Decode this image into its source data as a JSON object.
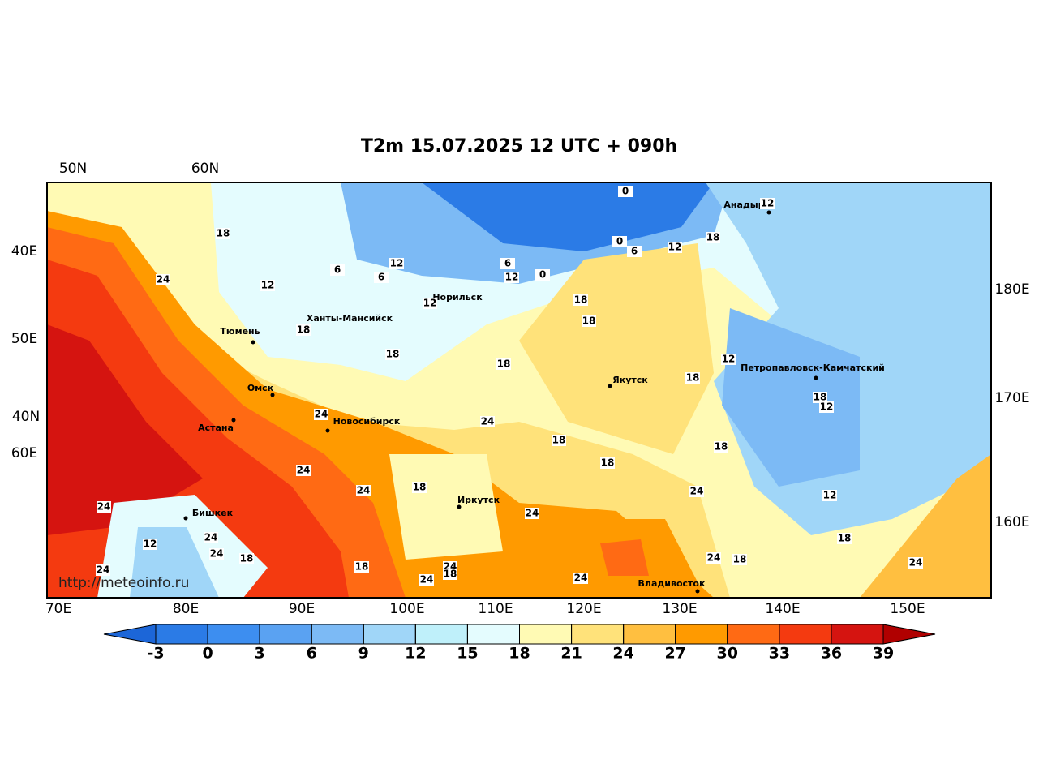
{
  "title": "T2m 15.07.2025 12 UTC + 090h",
  "watermark": "http://meteoinfo.ru",
  "grid_labels": {
    "top": [
      "50N",
      "60N"
    ],
    "left": [
      "40E",
      "50E",
      "40N",
      "60E"
    ],
    "bottom": [
      "70E",
      "80E",
      "90E",
      "100E",
      "110E",
      "120E",
      "130E",
      "140E",
      "150E"
    ],
    "right": [
      "180E",
      "170E",
      "160E"
    ]
  },
  "cities": [
    "Анадырь",
    "Норильск",
    "Ханты-Мансийск",
    "Тюмень",
    "Якутск",
    "Петропавловск-Камчатский",
    "Омск",
    "Астана",
    "Новосибирск",
    "Иркутск",
    "Бишкек",
    "Владивосток"
  ],
  "contour_labels": [
    0,
    18,
    12,
    18,
    0,
    6,
    12,
    24,
    12,
    6,
    6,
    12,
    6,
    12,
    0,
    12,
    18,
    18,
    18,
    18,
    18,
    12,
    18,
    18,
    12,
    24,
    24,
    18,
    18,
    18,
    24,
    24,
    18,
    24,
    12,
    24,
    24,
    12,
    24,
    24,
    18,
    18,
    24,
    18,
    24,
    18,
    24,
    24,
    18,
    24,
    24
  ],
  "colorbar": {
    "ticks": [
      -3,
      0,
      3,
      6,
      9,
      12,
      15,
      18,
      21,
      24,
      27,
      30,
      33,
      36,
      39
    ],
    "colors": [
      "#1c66d8",
      "#2b7be6",
      "#3d8ef0",
      "#5aa2f2",
      "#7cbaf5",
      "#a0d6f8",
      "#bff0fa",
      "#e4fcfe",
      "#fffab4",
      "#ffe27a",
      "#ffbf40",
      "#ff9a00",
      "#ff6a14",
      "#f43a10",
      "#d51410",
      "#b00000"
    ]
  }
}
